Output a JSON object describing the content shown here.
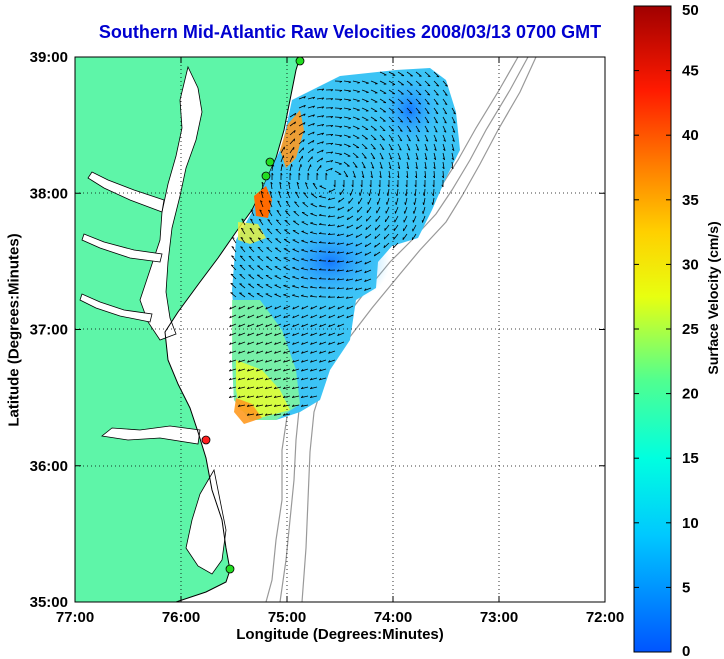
{
  "title": "Southern Mid-Atlantic Raw Velocities 2008/03/13 0700 GMT",
  "x_axis": {
    "label": "Longitude (Degrees:Minutes)",
    "ticks": [
      "77:00",
      "76:00",
      "75:00",
      "74:00",
      "73:00",
      "72:00"
    ]
  },
  "y_axis": {
    "label": "Latitude (Degrees:Minutes)",
    "ticks": [
      "39:00",
      "38:00",
      "37:00",
      "36:00",
      "35:00"
    ]
  },
  "colorbar": {
    "label": "Surface Velocity (cm/s)",
    "ticks": [
      "50",
      "45",
      "40",
      "35",
      "30",
      "25",
      "20",
      "15",
      "10",
      "5",
      "0"
    ],
    "min": 0,
    "max": 50
  },
  "map": {
    "lon_range": [
      -77,
      -72
    ],
    "lat_range": [
      35,
      39
    ],
    "grid": "dotted",
    "land_color": "#5ef5a8",
    "ocean_color": "#ffffff",
    "stations": [
      {
        "color": "green"
      },
      {
        "color": "green"
      },
      {
        "color": "green"
      },
      {
        "color": "red"
      },
      {
        "color": "green"
      }
    ]
  }
}
